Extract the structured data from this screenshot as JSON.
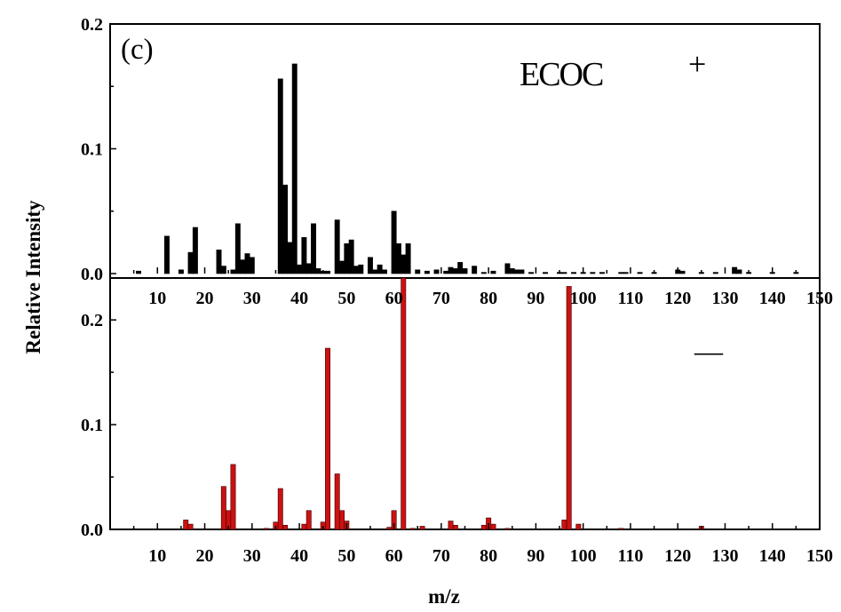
{
  "chart_data": [
    {
      "type": "bar",
      "panel": "top",
      "panel_label": "(c)",
      "title": "ECOC",
      "sign": "+",
      "xlim": [
        0,
        150
      ],
      "ylim": [
        0,
        0.2
      ],
      "x_ticks": [
        "10",
        "20",
        "30",
        "40",
        "50",
        "60",
        "70",
        "80",
        "90",
        "100",
        "110",
        "120",
        "130",
        "140",
        "150"
      ],
      "y_ticks": [
        "0.0",
        "0.1",
        "0.2"
      ],
      "bar_color": "#000000",
      "x": [
        6,
        12,
        15,
        17,
        18,
        23,
        24,
        26,
        27,
        28,
        29,
        30,
        36,
        37,
        38,
        39,
        40,
        41,
        42,
        43,
        44,
        45,
        46,
        48,
        49,
        50,
        51,
        52,
        53,
        55,
        56,
        57,
        58,
        60,
        61,
        62,
        63,
        65,
        67,
        69,
        71,
        72,
        73,
        74,
        75,
        77,
        79,
        81,
        84,
        85,
        86,
        87,
        89,
        92,
        95,
        96,
        98,
        100,
        102,
        104,
        108,
        109,
        112,
        115,
        120,
        121,
        125,
        128,
        132,
        133,
        135,
        140,
        145
      ],
      "values": [
        0.002,
        0.03,
        0.003,
        0.017,
        0.037,
        0.019,
        0.006,
        0.003,
        0.04,
        0.011,
        0.016,
        0.013,
        0.156,
        0.071,
        0.025,
        0.168,
        0.007,
        0.029,
        0.008,
        0.04,
        0.004,
        0.002,
        0.002,
        0.043,
        0.01,
        0.024,
        0.027,
        0.006,
        0.007,
        0.013,
        0.003,
        0.007,
        0.003,
        0.05,
        0.024,
        0.015,
        0.024,
        0.003,
        0.002,
        0.003,
        0.002,
        0.005,
        0.004,
        0.009,
        0.004,
        0.006,
        0.001,
        0.002,
        0.008,
        0.004,
        0.003,
        0.003,
        0.001,
        0.001,
        0.001,
        0.001,
        0.001,
        0.001,
        0.001,
        0.001,
        0.001,
        0.001,
        0.001,
        0.001,
        0.003,
        0.002,
        0.001,
        0.001,
        0.005,
        0.003,
        0.001,
        0.001,
        0.001
      ]
    },
    {
      "type": "bar",
      "panel": "bottom",
      "sign": "—",
      "xlim": [
        0,
        150
      ],
      "ylim": [
        0,
        0.24
      ],
      "x_ticks": [
        "10",
        "20",
        "30",
        "40",
        "50",
        "60",
        "70",
        "80",
        "90",
        "100",
        "110",
        "120",
        "130",
        "140",
        "150"
      ],
      "y_ticks": [
        "0.0",
        "0.1",
        "0.2"
      ],
      "bar_color": "#cc1111",
      "x": [
        16,
        17,
        24,
        25,
        26,
        33,
        35,
        36,
        37,
        41,
        42,
        45,
        46,
        48,
        49,
        50,
        59,
        60,
        62,
        64,
        66,
        72,
        73,
        79,
        80,
        81,
        84,
        96,
        97,
        99,
        108,
        125
      ],
      "values": [
        0.009,
        0.005,
        0.041,
        0.018,
        0.062,
        0.001,
        0.007,
        0.039,
        0.004,
        0.005,
        0.018,
        0.007,
        0.173,
        0.053,
        0.018,
        0.008,
        0.002,
        0.018,
        0.24,
        0.001,
        0.003,
        0.008,
        0.004,
        0.004,
        0.011,
        0.005,
        0.001,
        0.009,
        0.232,
        0.005,
        0.001,
        0.003
      ]
    }
  ],
  "axes": {
    "xlabel": "m/z",
    "ylabel": "Relative Intensity"
  }
}
